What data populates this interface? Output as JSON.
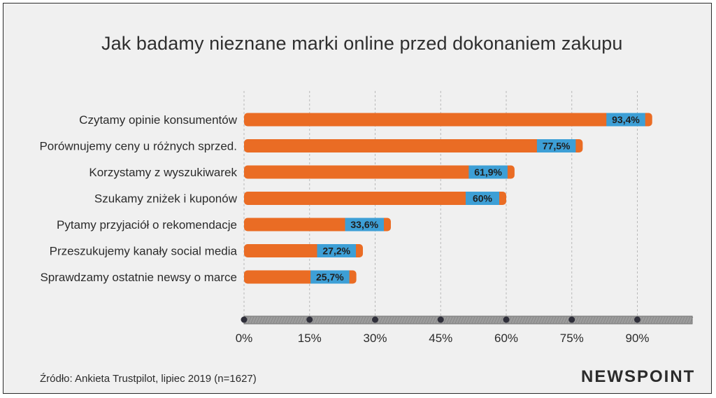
{
  "title": "Jak badamy nieznane marki online przed dokonaniem zakupu",
  "source": "Źródło: Ankieta Trustpilot, lipiec 2019 (n=1627)",
  "brand": "NEWSPOINT",
  "colors": {
    "bar": "#ea6c24",
    "label_bg": "#3d9fd6",
    "grid": "#b8b8b8",
    "axis_band": "#9c9c9c",
    "dot": "#2f2f3a"
  },
  "chart_data": {
    "type": "bar",
    "orientation": "horizontal",
    "title": "Jak badamy nieznane marki online przed dokonaniem zakupu",
    "categories": [
      "Czytamy opinie konsumentów",
      "Porównujemy ceny u różnych sprzed.",
      "Korzystamy z wyszukiwarek",
      "Szukamy zniżek i kuponów",
      "Pytamy przyjaciół o rekomendacje",
      "Przeszukujemy kanały social media",
      "Sprawdzamy ostatnie newsy o marce"
    ],
    "values": [
      93.4,
      77.5,
      61.9,
      60,
      33.6,
      27.2,
      25.7
    ],
    "value_labels": [
      "93,4%",
      "77,5%",
      "61,9%",
      "60%",
      "33,6%",
      "27,2%",
      "25,7%"
    ],
    "xlim": [
      0,
      102
    ],
    "xticks": [
      0,
      15,
      30,
      45,
      60,
      75,
      90
    ],
    "xtick_labels": [
      "0%",
      "15%",
      "30%",
      "45%",
      "60%",
      "75%",
      "90%"
    ],
    "grid": true
  }
}
